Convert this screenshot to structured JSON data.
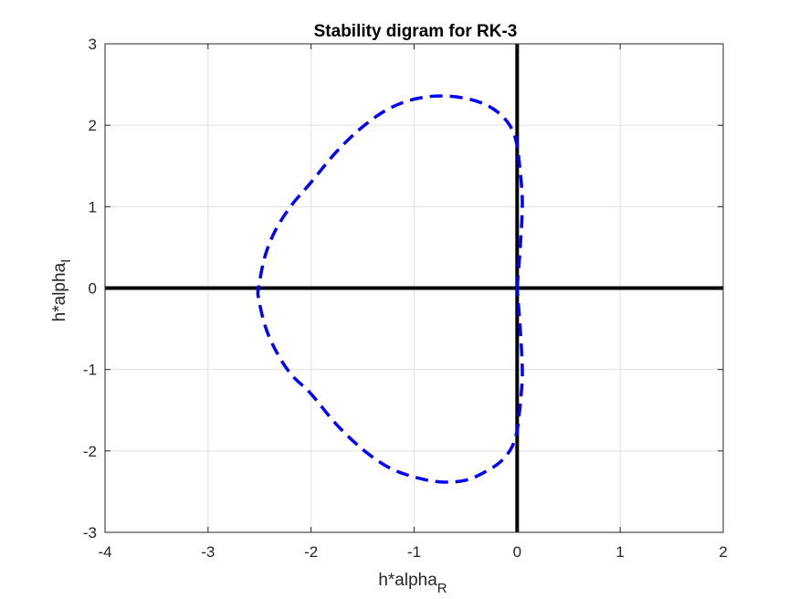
{
  "chart_data": {
    "type": "line",
    "title": "Stability digram for RK-3",
    "xlabel": {
      "base": "h*alpha",
      "subscript": "R"
    },
    "ylabel": {
      "base": "h*alpha",
      "subscript": "I"
    },
    "xlim": [
      -4,
      2
    ],
    "ylim": [
      -3,
      3
    ],
    "xticks": [
      -4,
      -3,
      -2,
      -1,
      0,
      1,
      2
    ],
    "yticks": [
      -3,
      -2,
      -1,
      0,
      1,
      2,
      3
    ],
    "xtick_labels": [
      "-4",
      "-3",
      "-2",
      "-1",
      "0",
      "1",
      "2"
    ],
    "ytick_labels": [
      "-3",
      "-2",
      "-1",
      "0",
      "1",
      "2",
      "3"
    ],
    "grid": true,
    "colors": {
      "curve": "#0000ff",
      "axes_lines": "#000000",
      "grid": "#e0e0e0",
      "box": "#262626"
    },
    "reference_lines": [
      {
        "orientation": "horizontal",
        "value": 0
      },
      {
        "orientation": "vertical",
        "value": 0
      }
    ],
    "series": [
      {
        "style": "dashed",
        "x": [
          0.0,
          0.03,
          0.05,
          0.04,
          0.02,
          0.0,
          -0.05,
          -0.15,
          -0.3,
          -0.5,
          -0.75,
          -1.0,
          -1.25,
          -1.5,
          -1.75,
          -2.0,
          -2.2,
          -2.35,
          -2.45,
          -2.51,
          -2.51,
          -2.45,
          -2.35,
          -2.2,
          -2.0,
          -1.75,
          -1.5,
          -1.25,
          -1.0,
          -0.75,
          -0.5,
          -0.3,
          -0.15,
          -0.05,
          0.0,
          0.02,
          0.04,
          0.05,
          0.03,
          0.0
        ],
        "y": [
          0.0,
          0.5,
          1.0,
          1.3,
          1.55,
          1.75,
          1.95,
          2.12,
          2.25,
          2.33,
          2.36,
          2.32,
          2.2,
          1.98,
          1.68,
          1.3,
          1.0,
          0.7,
          0.38,
          0.0,
          -0.12,
          -0.45,
          -0.75,
          -1.05,
          -1.3,
          -1.68,
          -1.98,
          -2.2,
          -2.32,
          -2.38,
          -2.36,
          -2.25,
          -2.12,
          -1.95,
          -1.75,
          -1.55,
          -1.3,
          -1.0,
          -0.5,
          0.0
        ]
      }
    ]
  }
}
